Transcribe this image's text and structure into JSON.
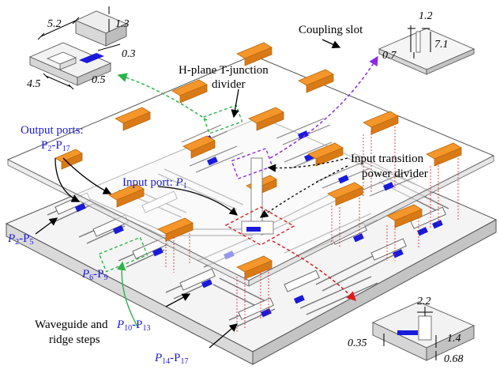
{
  "labels": {
    "h_plane_line1": "H-plane T-junction",
    "h_plane_line2": "divider",
    "coupling_slot": "Coupling slot",
    "input_transition_line1": "Input transition",
    "input_transition_line2": "power divider",
    "output_ports_line1": "Output ports:",
    "output_ports_p": "P",
    "output_ports_sub1": "2",
    "output_ports_dash": "-P",
    "output_ports_sub2": "17",
    "input_port_text": "Input port: ",
    "input_port_p": "P",
    "input_port_sub": "1",
    "waveguide_line1": "Waveguide and",
    "waveguide_line2": "ridge steps"
  },
  "port_groups": [
    {
      "p": "P",
      "a": "2",
      "dash": "-P",
      "b": "5"
    },
    {
      "p": "P",
      "a": "6",
      "dash": "-P",
      "b": "9"
    },
    {
      "p": "P",
      "a": "10",
      "dash": "-P",
      "b": "13"
    },
    {
      "p": "P",
      "a": "14",
      "dash": "-P",
      "b": "17"
    }
  ],
  "dimensions": {
    "tl_5_2": "5.2",
    "tl_1_3": "1.3",
    "tl_0_3": "0.3",
    "tl_4_5": "4.5",
    "tl_0_5": "0.5",
    "tr_1_2": "1.2",
    "tr_7_1": "7.1",
    "tr_0_7": "0.7",
    "br_2_2": "2.2",
    "br_1_4": "1.4",
    "br_0_35": "0.35",
    "br_0_68": "0.68"
  },
  "colors": {
    "patch": "#f5962a",
    "port": "#1a1adb",
    "green": "#2db34a",
    "purple": "#8a2be2",
    "red": "#e01b1b",
    "label_blue": "#1a1adb"
  }
}
